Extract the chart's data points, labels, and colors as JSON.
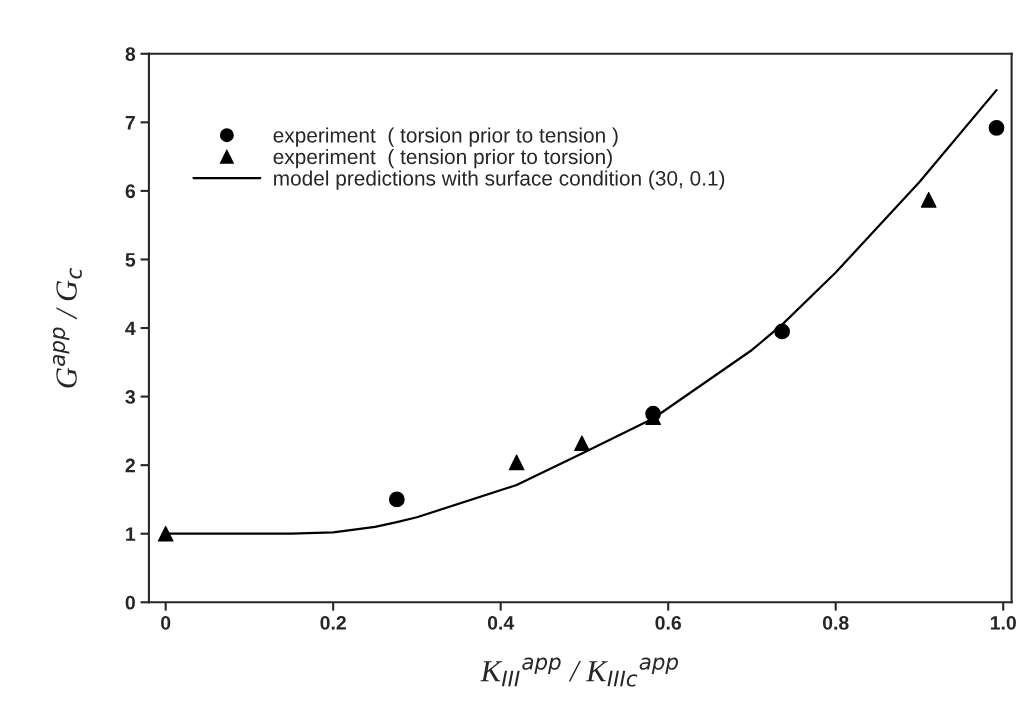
{
  "chart_data": {
    "type": "scatter",
    "xlabel": "K$_{III}$$^{app}$ / K$_{IIIc}$$^{app}$",
    "ylabel": "G$^{app}$ / G$_{c}$",
    "xlim": [
      -0.02,
      1.01
    ],
    "ylim": [
      0,
      8
    ],
    "xticks": [
      0,
      0.2,
      0.4,
      0.6,
      0.8,
      {
        "value": 1,
        "label": "1.0"
      }
    ],
    "yticks": [
      0,
      1,
      2,
      3,
      4,
      5,
      6,
      7,
      8
    ],
    "grid": false,
    "legend": "top left",
    "series": [
      {
        "name": "experiment  ( torsion prior to tension )",
        "marker": "circle",
        "color": "#000000",
        "x": [
          0.276,
          0.582,
          0.736,
          0.992
        ],
        "values": [
          1.5,
          2.75,
          3.95,
          6.92
        ]
      },
      {
        "name": "experiment  ( tension prior to torsion)",
        "marker": "triangle",
        "color": "#000000",
        "x": [
          0,
          0.419,
          0.497,
          0.582,
          0.911
        ],
        "values": [
          1.0,
          2.04,
          2.32,
          2.7,
          5.87
        ]
      },
      {
        "name": "model predictions with surface condition (30, 0.1)",
        "type": "line",
        "marker": "none",
        "line_style": "solid",
        "color": "#000000",
        "x": [
          0,
          0.1,
          0.15,
          0.2,
          0.25,
          0.276,
          0.3,
          0.419,
          0.497,
          0.582,
          0.7,
          0.736,
          0.8,
          0.9,
          0.911,
          0.992
        ],
        "values": [
          1.0,
          1.0,
          1.0,
          1.02,
          1.1,
          1.17,
          1.24,
          1.71,
          2.17,
          2.68,
          3.68,
          4.05,
          4.81,
          6.13,
          6.29,
          7.47
        ]
      }
    ]
  }
}
